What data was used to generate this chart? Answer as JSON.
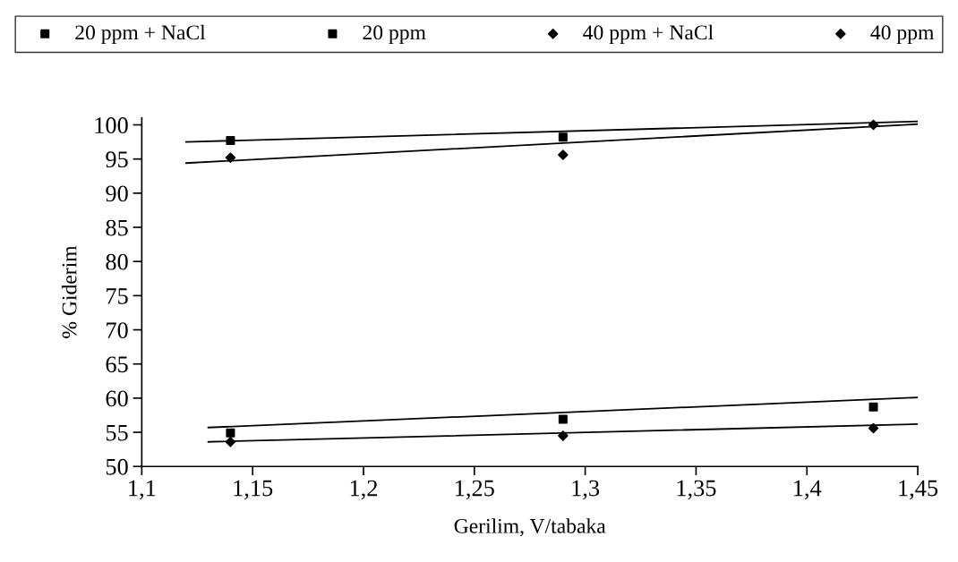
{
  "chart_data": {
    "type": "scatter",
    "xlabel": "Gerilim, V/tabaka",
    "ylabel": "% Giderim",
    "xlim": [
      1.1,
      1.45
    ],
    "ylim": [
      50,
      101
    ],
    "xticks": [
      {
        "value": 1.1,
        "label": "1,1"
      },
      {
        "value": 1.15,
        "label": "1,15"
      },
      {
        "value": 1.2,
        "label": "1,2"
      },
      {
        "value": 1.25,
        "label": "1,25"
      },
      {
        "value": 1.3,
        "label": "1,3"
      },
      {
        "value": 1.35,
        "label": "1,35"
      },
      {
        "value": 1.4,
        "label": "1,4"
      },
      {
        "value": 1.45,
        "label": "1,45"
      }
    ],
    "yticks": [
      50,
      55,
      60,
      65,
      70,
      75,
      80,
      85,
      90,
      95,
      100
    ],
    "grid": false,
    "legend": "top",
    "series": [
      {
        "name": "20 ppm + NaCl",
        "color": "#000000",
        "marker": "square",
        "x": [
          1.14,
          1.29
        ],
        "values": [
          97.7,
          98.2
        ]
      },
      {
        "name": "20 ppm",
        "color": "#000000",
        "marker": "square",
        "x": [
          1.14,
          1.29,
          1.43
        ],
        "values": [
          54.9,
          56.9,
          58.7
        ]
      },
      {
        "name": "40 ppm + NaCl",
        "color": "#000000",
        "marker": "diamond",
        "x": [
          1.14,
          1.29,
          1.43
        ],
        "values": [
          95.2,
          95.6,
          100
        ]
      },
      {
        "name": "40 ppm",
        "color": "#000000",
        "marker": "diamond",
        "x": [
          1.14,
          1.29,
          1.43
        ],
        "values": [
          53.6,
          54.5,
          55.6
        ]
      },
      {
        "type": "line",
        "color": "#000000",
        "x": [
          1.12,
          1.45
        ],
        "values": [
          97.5,
          100.5
        ]
      },
      {
        "type": "line",
        "color": "#000000",
        "x": [
          1.12,
          1.45
        ],
        "values": [
          94.4,
          100.1
        ]
      },
      {
        "type": "line",
        "color": "#000000",
        "x": [
          1.13,
          1.45
        ],
        "values": [
          55.7,
          60.1
        ]
      },
      {
        "type": "line",
        "color": "#000000",
        "x": [
          1.13,
          1.45
        ],
        "values": [
          53.6,
          56.2
        ]
      }
    ]
  }
}
